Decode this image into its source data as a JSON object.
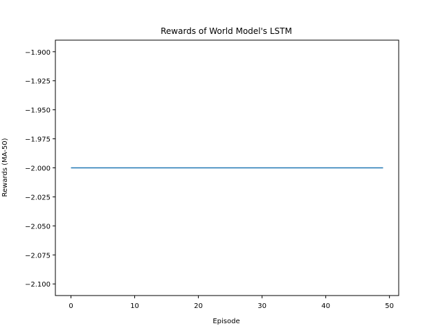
{
  "chart_data": {
    "type": "line",
    "title": "Rewards of World Model's LSTM",
    "xlabel": "Episode",
    "ylabel": "Rewards (MA-50)",
    "xlim": [
      -2.45,
      51.45
    ],
    "ylim": [
      -2.11,
      -1.89
    ],
    "xticks": [
      0,
      10,
      20,
      30,
      40,
      50
    ],
    "yticks": [
      -1.9,
      -1.925,
      -1.95,
      -1.975,
      -2.0,
      -2.025,
      -2.05,
      -2.075,
      -2.1
    ],
    "xtick_labels": [
      "0",
      "10",
      "20",
      "30",
      "40",
      "50"
    ],
    "ytick_labels": [
      "−1.900",
      "−1.925",
      "−1.950",
      "−1.975",
      "−2.000",
      "−2.025",
      "−2.050",
      "−2.075",
      "−2.100"
    ],
    "grid": false,
    "series": [
      {
        "color": "#1f77b4",
        "x": [
          0,
          1,
          2,
          3,
          4,
          5,
          6,
          7,
          8,
          9,
          10,
          11,
          12,
          13,
          14,
          15,
          16,
          17,
          18,
          19,
          20,
          21,
          22,
          23,
          24,
          25,
          26,
          27,
          28,
          29,
          30,
          31,
          32,
          33,
          34,
          35,
          36,
          37,
          38,
          39,
          40,
          41,
          42,
          43,
          44,
          45,
          46,
          47,
          48,
          49
        ],
        "values": [
          -2.0,
          -2.0,
          -2.0,
          -2.0,
          -2.0,
          -2.0,
          -2.0,
          -2.0,
          -2.0,
          -2.0,
          -2.0,
          -2.0,
          -2.0,
          -2.0,
          -2.0,
          -2.0,
          -2.0,
          -2.0,
          -2.0,
          -2.0,
          -2.0,
          -2.0,
          -2.0,
          -2.0,
          -2.0,
          -2.0,
          -2.0,
          -2.0,
          -2.0,
          -2.0,
          -2.0,
          -2.0,
          -2.0,
          -2.0,
          -2.0,
          -2.0,
          -2.0,
          -2.0,
          -2.0,
          -2.0,
          -2.0,
          -2.0,
          -2.0,
          -2.0,
          -2.0,
          -2.0,
          -2.0,
          -2.0,
          -2.0,
          -2.0
        ]
      }
    ]
  }
}
